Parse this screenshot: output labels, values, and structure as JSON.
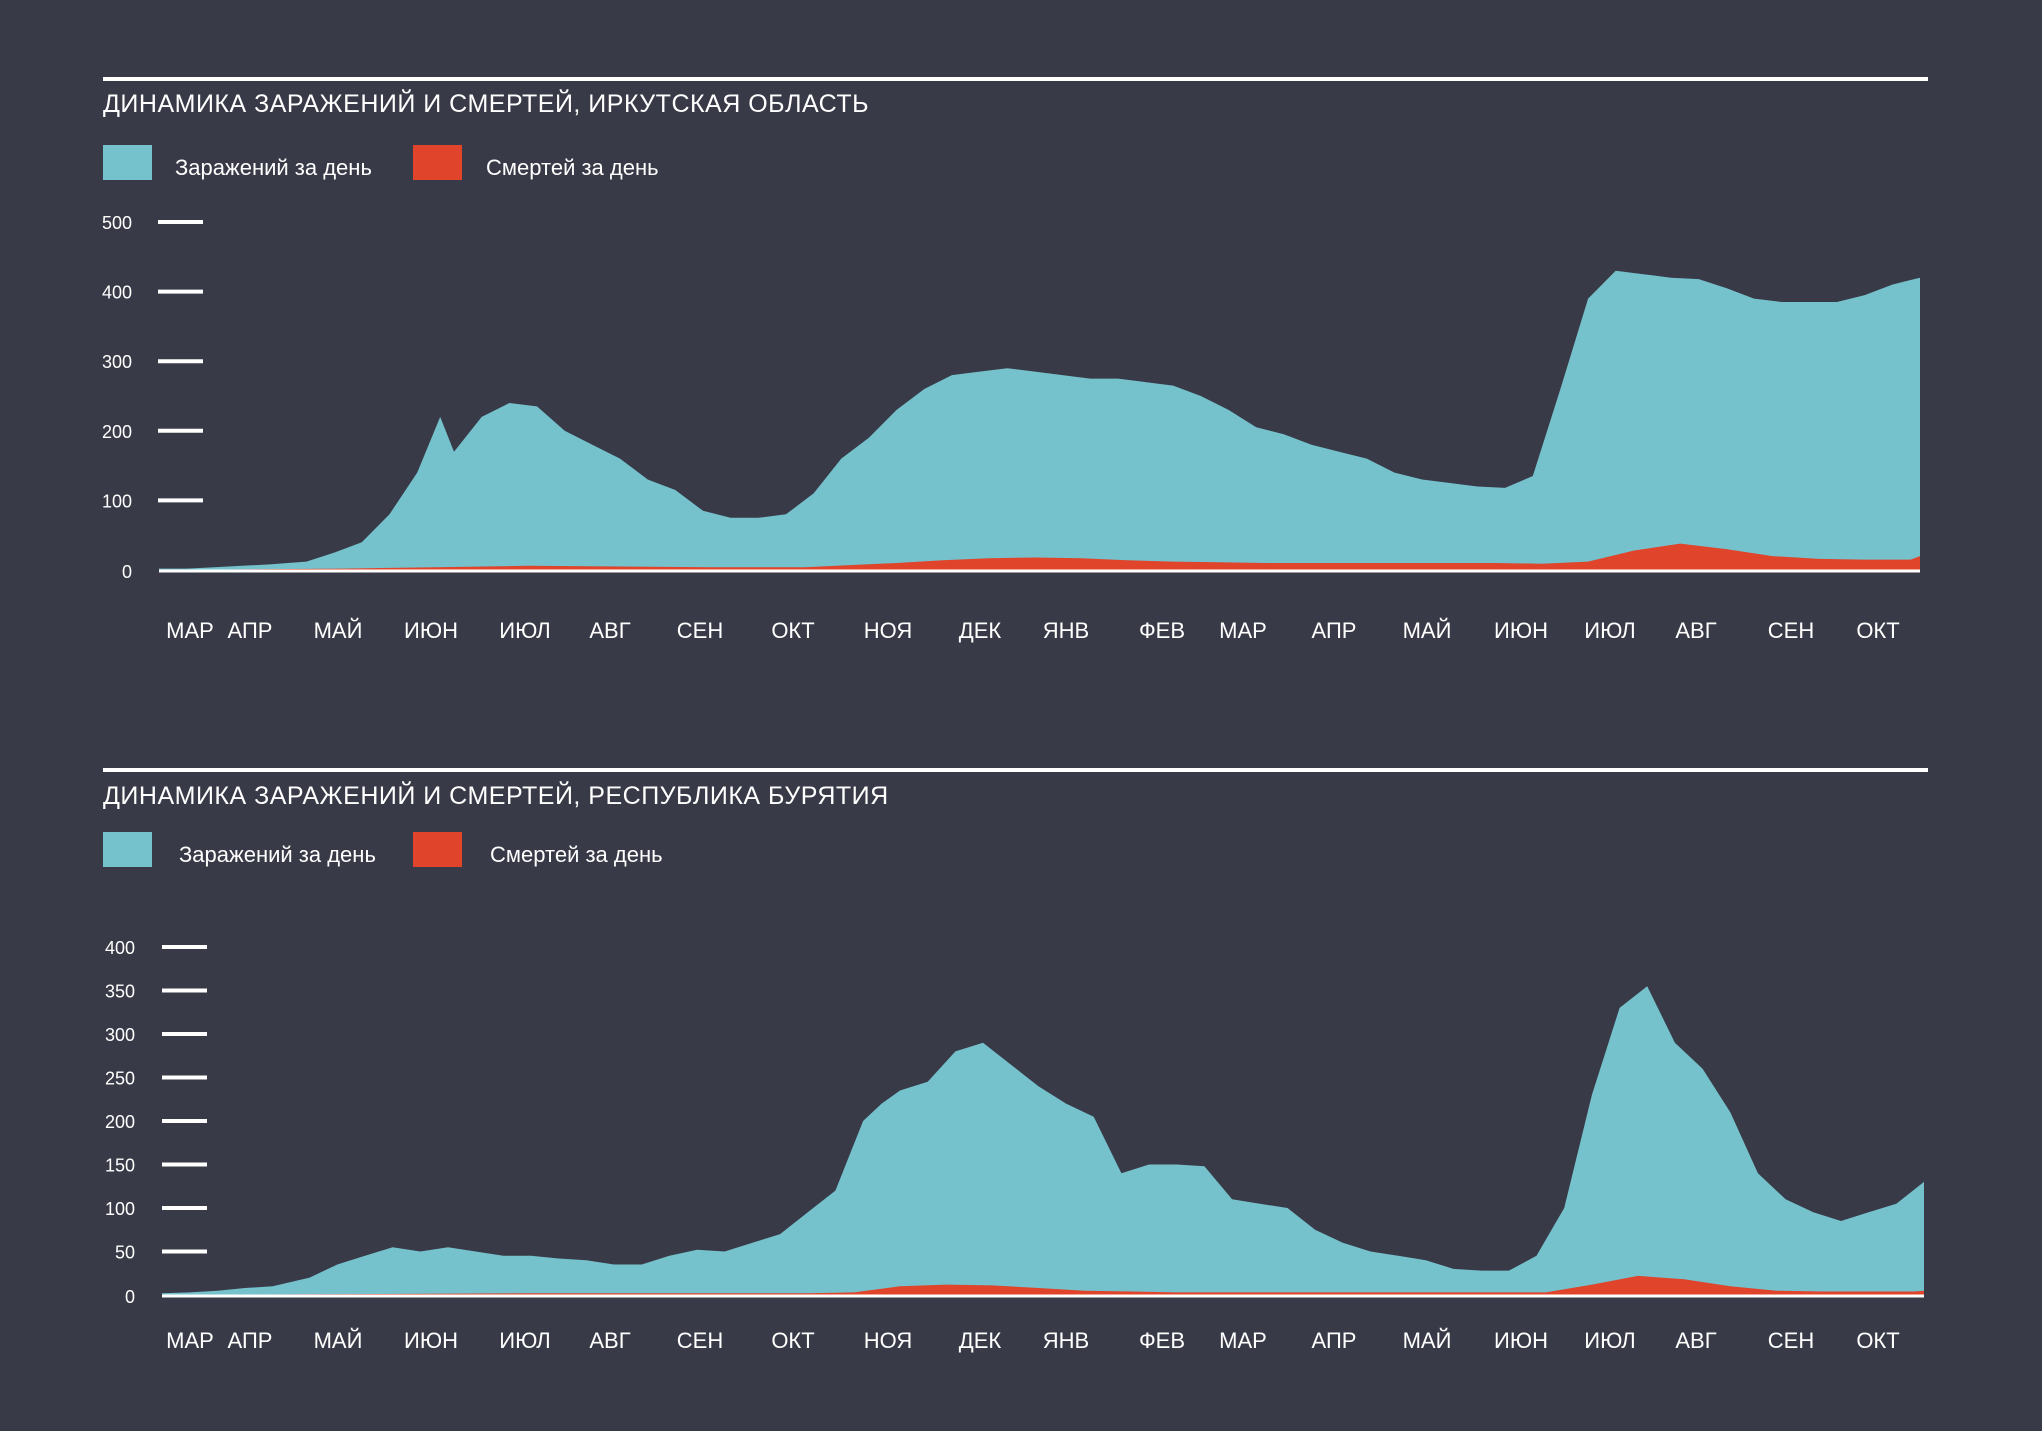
{
  "colors": {
    "background": "#393a47",
    "infections": "#75c1cc",
    "deaths": "#e0442a",
    "text": "#ffffff"
  },
  "chart_data": [
    {
      "type": "area",
      "title": "ДИНАМИКА ЗАРАЖЕНИЙ И СМЕРТЕЙ, ИРКУТСКАЯ ОБЛАСТЬ",
      "legend": [
        "Заражений за день",
        "Смертей за день"
      ],
      "legend_position": "top-left",
      "grid": false,
      "ylim": [
        0,
        500
      ],
      "yticks": [
        0,
        100,
        200,
        300,
        400,
        500
      ],
      "xtick_labels": [
        "МАР",
        "АПР",
        "МАЙ",
        "ИЮН",
        "ИЮЛ",
        "АВГ",
        "СЕН",
        "ОКТ",
        "НОЯ",
        "ДЕК",
        "ЯНВ",
        "ФЕВ",
        "МАР",
        "АПР",
        "МАЙ",
        "ИЮН",
        "ИЮЛ",
        "АВГ",
        "СЕН",
        "ОКТ"
      ],
      "series": [
        {
          "name": "Заражений за день",
          "x": [
            0,
            0.3,
            0.6,
            0.9,
            1.2,
            1.6,
            1.9,
            2.2,
            2.5,
            2.8,
            3.05,
            3.2,
            3.5,
            3.8,
            4.1,
            4.4,
            4.7,
            5.0,
            5.3,
            5.6,
            5.9,
            6.2,
            6.5,
            6.8,
            7.1,
            7.4,
            7.7,
            8.0,
            8.3,
            8.6,
            8.9,
            9.2,
            9.5,
            9.8,
            10.1,
            10.4,
            10.7,
            11.0,
            11.3,
            11.6,
            11.9,
            12.2,
            12.5,
            12.8,
            13.1,
            13.4,
            13.7,
            14.0,
            14.3,
            14.6,
            14.9,
            15.2,
            15.5,
            15.8,
            16.1,
            16.4,
            16.7,
            17.0,
            17.3,
            17.6,
            17.9,
            18.2,
            18.5,
            18.8,
            19.1
          ],
          "y": [
            2,
            2,
            4,
            6,
            8,
            12,
            25,
            40,
            80,
            140,
            220,
            170,
            220,
            240,
            235,
            200,
            180,
            160,
            130,
            115,
            85,
            75,
            75,
            80,
            110,
            160,
            190,
            230,
            260,
            280,
            285,
            290,
            285,
            280,
            275,
            275,
            270,
            265,
            250,
            230,
            205,
            195,
            180,
            170,
            160,
            140,
            130,
            125,
            120,
            118,
            135,
            260,
            390,
            430,
            425,
            420,
            418,
            405,
            390,
            385,
            385,
            385,
            395,
            410,
            420
          ]
        },
        {
          "name": "Смертей за день",
          "x": [
            0,
            2.0,
            3.0,
            4.0,
            5.0,
            6.0,
            7.0,
            8.0,
            8.5,
            9.0,
            9.5,
            10.0,
            10.5,
            11.0,
            11.5,
            12.0,
            12.5,
            13.0,
            13.5,
            14.0,
            14.5,
            15.0,
            15.5,
            16.0,
            16.5,
            17.0,
            17.5,
            18.0,
            18.5,
            19.0,
            19.1
          ],
          "y": [
            0,
            2,
            4,
            6,
            5,
            4,
            4,
            10,
            14,
            17,
            18,
            17,
            14,
            12,
            11,
            10,
            10,
            10,
            10,
            10,
            10,
            9,
            12,
            28,
            38,
            30,
            20,
            16,
            15,
            15,
            20
          ]
        }
      ]
    },
    {
      "type": "area",
      "title": "ДИНАМИКА ЗАРАЖЕНИЙ И СМЕРТЕЙ, РЕСПУБЛИКА БУРЯТИЯ",
      "legend": [
        "Заражений за день",
        "Смертей за день"
      ],
      "legend_position": "top-left",
      "grid": false,
      "ylim": [
        0,
        400
      ],
      "yticks": [
        0,
        50,
        100,
        150,
        200,
        250,
        300,
        350,
        400
      ],
      "xtick_labels": [
        "МАР",
        "АПР",
        "МАЙ",
        "ИЮН",
        "ИЮЛ",
        "АВГ",
        "СЕН",
        "ОКТ",
        "НОЯ",
        "ДЕК",
        "ЯНВ",
        "ФЕВ",
        "МАР",
        "АПР",
        "МАЙ",
        "ИЮН",
        "ИЮЛ",
        "АВГ",
        "СЕН",
        "ОКТ"
      ],
      "series": [
        {
          "name": "Заражений за день",
          "x": [
            0,
            0.3,
            0.6,
            0.9,
            1.2,
            1.6,
            1.9,
            2.2,
            2.5,
            2.8,
            3.1,
            3.4,
            3.7,
            4.0,
            4.3,
            4.6,
            4.9,
            5.2,
            5.5,
            5.8,
            6.1,
            6.4,
            6.7,
            7.0,
            7.3,
            7.6,
            7.8,
            8.0,
            8.3,
            8.6,
            8.9,
            9.2,
            9.5,
            9.8,
            10.1,
            10.4,
            10.7,
            11.0,
            11.3,
            11.6,
            11.9,
            12.2,
            12.5,
            12.8,
            13.1,
            13.4,
            13.7,
            14.0,
            14.3,
            14.6,
            14.9,
            15.2,
            15.5,
            15.8,
            16.1,
            16.4,
            16.7,
            17.0,
            17.3,
            17.6,
            17.9,
            18.2,
            18.5,
            18.8,
            19.1
          ],
          "y": [
            2,
            3,
            5,
            8,
            10,
            20,
            35,
            45,
            55,
            50,
            55,
            50,
            45,
            45,
            42,
            40,
            35,
            35,
            45,
            52,
            50,
            60,
            70,
            95,
            120,
            200,
            220,
            235,
            245,
            280,
            290,
            265,
            240,
            220,
            205,
            140,
            150,
            150,
            148,
            110,
            105,
            100,
            75,
            60,
            50,
            45,
            40,
            30,
            28,
            28,
            45,
            100,
            230,
            330,
            355,
            290,
            260,
            210,
            140,
            110,
            95,
            85,
            95,
            105,
            130
          ]
        },
        {
          "name": "Смертей за день",
          "x": [
            0,
            2.0,
            4.0,
            6.0,
            7.0,
            7.5,
            8.0,
            8.5,
            9.0,
            9.5,
            10.0,
            10.5,
            11.0,
            11.5,
            12.0,
            12.5,
            13.0,
            13.5,
            14.0,
            14.5,
            15.0,
            15.5,
            16.0,
            16.5,
            17.0,
            17.5,
            18.0,
            18.5,
            19.0,
            19.1
          ],
          "y": [
            0,
            1,
            2,
            2,
            2,
            3,
            10,
            12,
            11,
            8,
            5,
            4,
            3,
            3,
            3,
            3,
            3,
            3,
            3,
            3,
            3,
            12,
            22,
            18,
            10,
            5,
            4,
            4,
            4,
            5
          ]
        }
      ]
    }
  ]
}
